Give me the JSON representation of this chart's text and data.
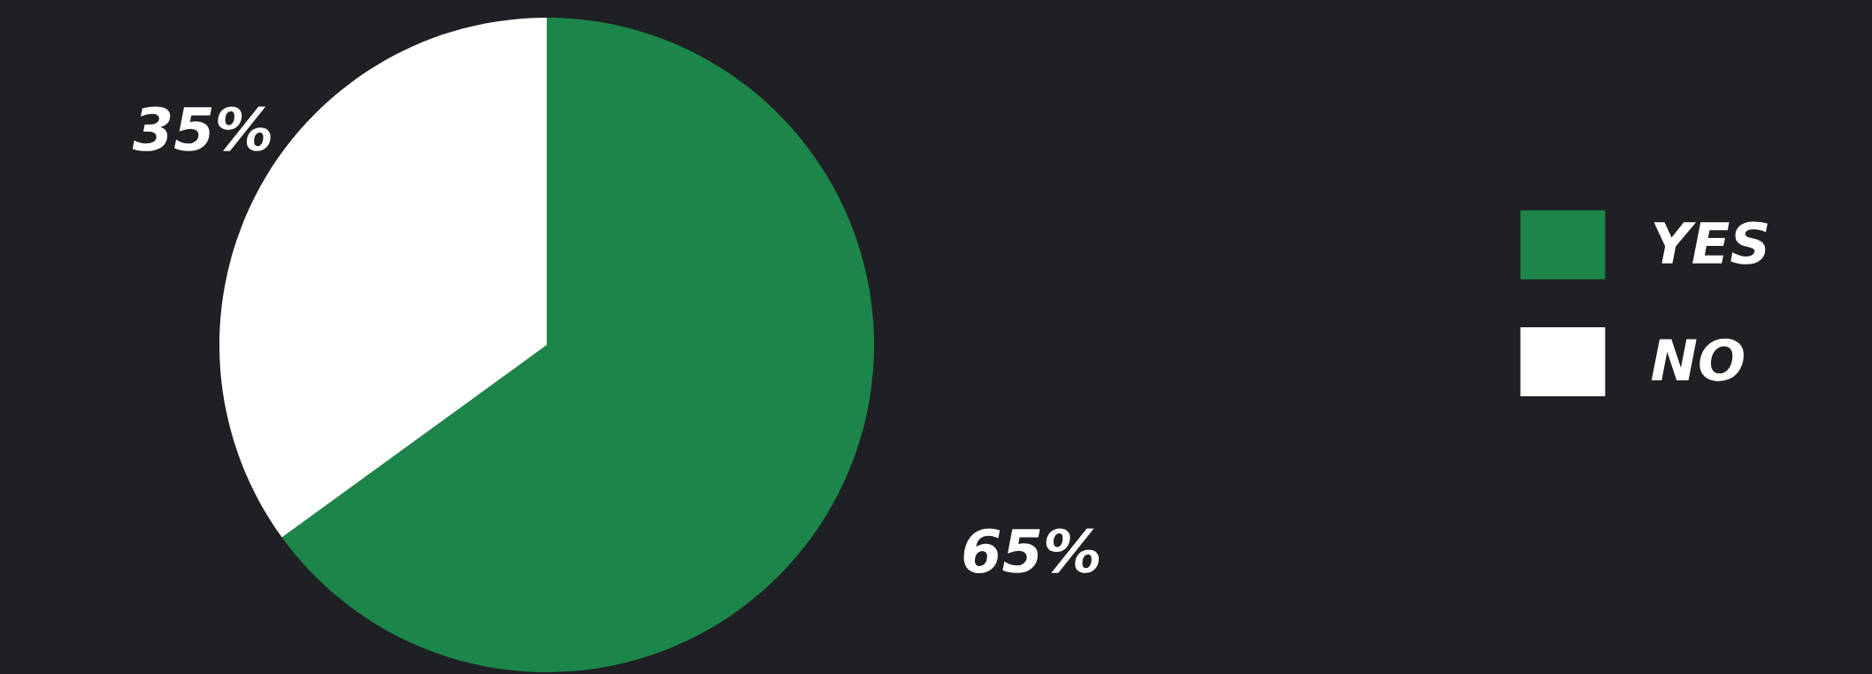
{
  "chart_data": {
    "type": "pie",
    "categories": [
      "YES",
      "NO"
    ],
    "values": [
      65,
      35
    ],
    "colors": [
      "#1c864a",
      "#ffffff"
    ],
    "value_labels": [
      "65%",
      "35%"
    ],
    "legend": "right"
  }
}
